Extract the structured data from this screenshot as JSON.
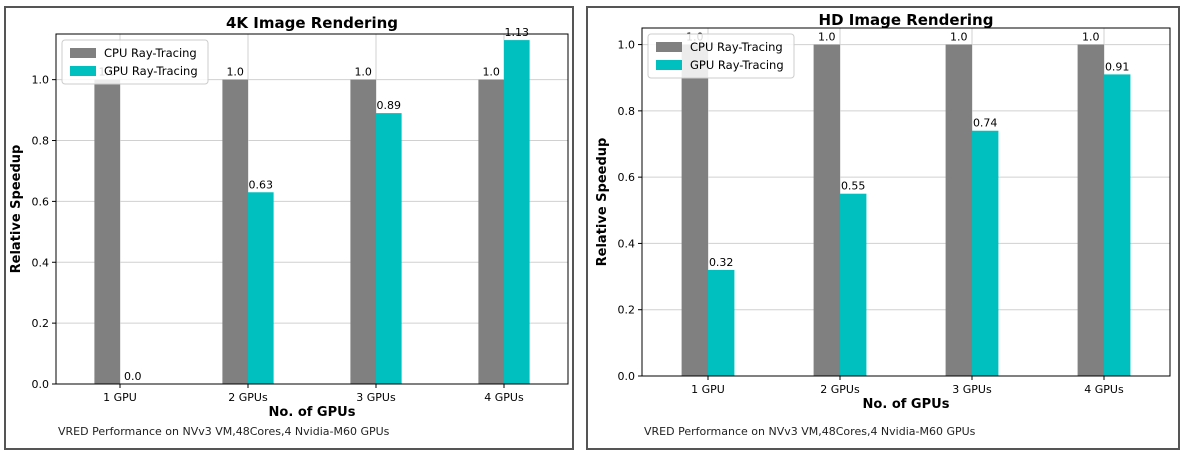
{
  "chart_data": [
    {
      "type": "bar",
      "title": "4K Image Rendering",
      "xlabel": "No. of GPUs",
      "ylabel": "Relative Speedup",
      "categories": [
        "1 GPU",
        "2 GPUs",
        "3 GPUs",
        "4 GPUs"
      ],
      "series": [
        {
          "name": "CPU Ray-Tracing",
          "color": "#808080",
          "values": [
            1.0,
            1.0,
            1.0,
            1.0
          ],
          "labels": [
            "1.0",
            "1.0",
            "1.0",
            "1.0"
          ]
        },
        {
          "name": "GPU Ray-Tracing",
          "color": "#00bfbf",
          "values": [
            0.0,
            0.63,
            0.89,
            1.13
          ],
          "labels": [
            "0.0",
            "0.63",
            "0.89",
            "1.13"
          ]
        }
      ],
      "ylim": [
        0,
        1.15
      ],
      "yticks": [
        "0.0",
        "0.2",
        "0.4",
        "0.6",
        "0.8",
        "1.0"
      ],
      "grid": true,
      "legend": "top-left",
      "caption": "VRED Performance on NVv3 VM,48Cores,4 Nvidia-M60 GPUs"
    },
    {
      "type": "bar",
      "title": "HD Image Rendering",
      "xlabel": "No. of GPUs",
      "ylabel": "Relative Speedup",
      "categories": [
        "1 GPU",
        "2 GPUs",
        "3 GPUs",
        "4 GPUs"
      ],
      "series": [
        {
          "name": "CPU Ray-Tracing",
          "color": "#808080",
          "values": [
            1.0,
            1.0,
            1.0,
            1.0
          ],
          "labels": [
            "1.0",
            "1.0",
            "1.0",
            "1.0"
          ]
        },
        {
          "name": "GPU Ray-Tracing",
          "color": "#00bfbf",
          "values": [
            0.32,
            0.55,
            0.74,
            0.91
          ],
          "labels": [
            "0.32",
            "0.55",
            "0.74",
            "0.91"
          ]
        }
      ],
      "ylim": [
        0,
        1.05
      ],
      "yticks": [
        "0.0",
        "0.2",
        "0.4",
        "0.6",
        "0.8",
        "1.0"
      ],
      "grid": true,
      "legend": "top-left",
      "caption": "VRED Performance on NVv3 VM,48Cores,4 Nvidia-M60 GPUs"
    }
  ]
}
